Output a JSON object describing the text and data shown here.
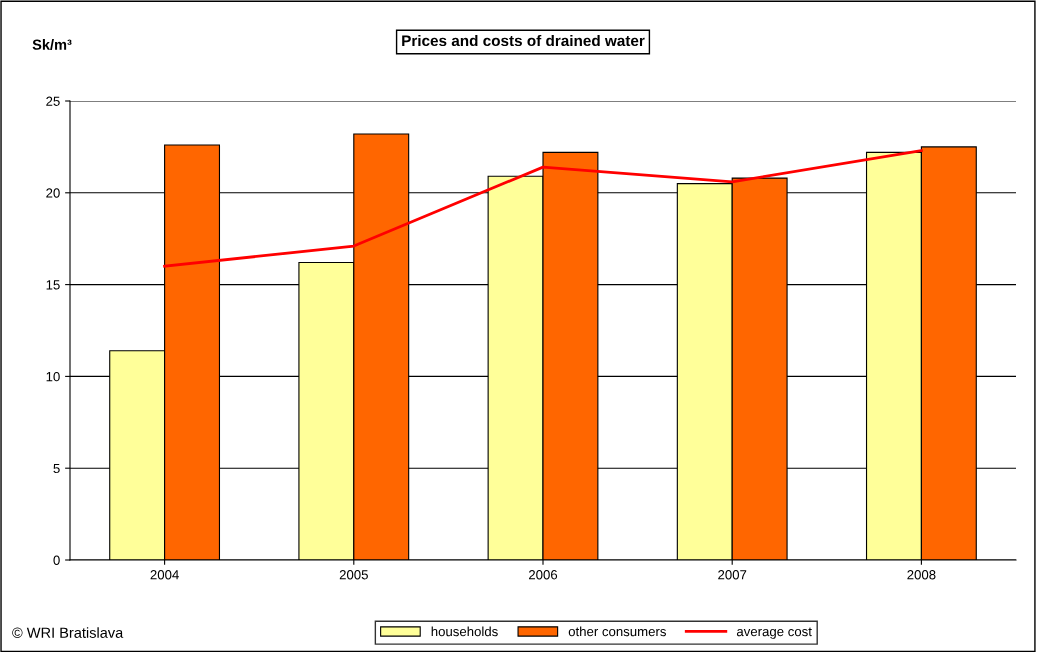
{
  "chart_data": {
    "type": "bar",
    "title": "Prices and costs of drained water",
    "ylabel": "Sk/m³",
    "categories": [
      "2004",
      "2005",
      "2006",
      "2007",
      "2008"
    ],
    "series": [
      {
        "name": "households",
        "color": "#ffff99",
        "values": [
          11.4,
          16.2,
          20.9,
          20.5,
          22.2
        ]
      },
      {
        "name": "other consumers",
        "color": "#ff6600",
        "values": [
          22.6,
          23.2,
          22.2,
          20.8,
          22.5
        ]
      },
      {
        "name": "average cost",
        "type": "line",
        "color": "#ff0000",
        "values": [
          16.0,
          17.1,
          21.4,
          20.6,
          22.3
        ]
      }
    ],
    "ylim": [
      0,
      25
    ],
    "yticks": [
      0,
      5,
      10,
      15,
      20,
      25
    ],
    "grid": "y",
    "legend": "bottom",
    "marker": "none",
    "annotations": [
      "© WRI Bratislava"
    ]
  }
}
